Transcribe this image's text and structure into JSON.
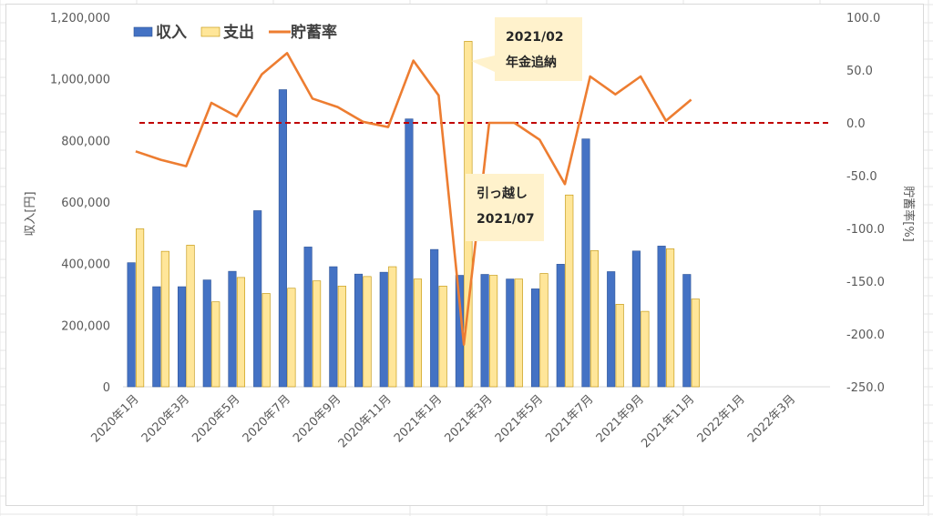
{
  "chart_data": {
    "type": "bar",
    "categories": [
      "2020年1月",
      "2020年2月",
      "2020年3月",
      "2020年4月",
      "2020年5月",
      "2020年6月",
      "2020年7月",
      "2020年8月",
      "2020年9月",
      "2020年10月",
      "2020年11月",
      "2020年12月",
      "2021年1月",
      "2021年2月",
      "2021年3月",
      "2021年4月",
      "2021年5月",
      "2021年6月",
      "2021年7月",
      "2021年8月",
      "2021年9月",
      "2021年10月",
      "2021年11月",
      "2021年12月",
      "2022年1月",
      "2022年2月",
      "2022年3月",
      "2022年4月"
    ],
    "x_tick_labels": [
      "2020年1月",
      "2020年3月",
      "2020年5月",
      "2020年7月",
      "2020年9月",
      "2020年11月",
      "2021年1月",
      "2021年3月",
      "2021年5月",
      "2021年7月",
      "2021年9月",
      "2021年11月",
      "2022年1月",
      "2022年3月"
    ],
    "series": [
      {
        "name": "収入",
        "type": "bar",
        "axis": "left",
        "color": "#4472c4",
        "values": [
          403000,
          325000,
          325000,
          347000,
          375000,
          572000,
          965000,
          454000,
          390000,
          366000,
          372000,
          870000,
          446000,
          362000,
          365000,
          350000,
          318000,
          398000,
          805000,
          374000,
          441000,
          457000,
          365000,
          null,
          null,
          null,
          null,
          null
        ]
      },
      {
        "name": "支出",
        "type": "bar",
        "axis": "left",
        "color": "#ffe699",
        "values": [
          513000,
          440000,
          460000,
          276000,
          355000,
          303000,
          320000,
          344000,
          327000,
          358000,
          390000,
          350000,
          327000,
          1122000,
          362000,
          350000,
          368000,
          623000,
          442000,
          268000,
          245000,
          448000,
          285000,
          null,
          null,
          null,
          null,
          null
        ]
      },
      {
        "name": "貯蓄率",
        "type": "line",
        "axis": "right",
        "color": "#ed7d31",
        "values": [
          -27,
          -35,
          -41,
          19,
          6,
          46,
          66,
          23,
          15,
          1,
          -4,
          59,
          26,
          -210,
          0,
          0,
          -16,
          -58,
          44,
          27,
          44,
          2,
          22,
          null,
          null,
          null,
          null,
          null
        ]
      }
    ],
    "y_left": {
      "label": "収入[円]",
      "min": 0,
      "max": 1200000,
      "step": 200000,
      "tick_labels": [
        "0",
        "200,000",
        "400,000",
        "600,000",
        "800,000",
        "1,000,000",
        "1,200,000"
      ]
    },
    "y_right": {
      "label": "貯蓄率[%]",
      "min": -250,
      "max": 100,
      "step": 50,
      "tick_labels": [
        "-250.0",
        "-200.0",
        "-150.0",
        "-100.0",
        "-50.0",
        "0.0",
        "50.0",
        "100.0"
      ]
    },
    "reference_line": {
      "axis": "right",
      "value": 0,
      "color": "#c00000",
      "style": "dashed"
    },
    "legend": {
      "placement": "top-left",
      "items": [
        "収入",
        "支出",
        "貯蓄率"
      ]
    },
    "annotations": [
      {
        "lines": [
          "2021/02",
          "年金追納"
        ],
        "points_to": "2021年2月"
      },
      {
        "lines": [
          "引っ越し",
          "2021/07"
        ],
        "points_to": "2021年6月"
      }
    ],
    "grid": false,
    "colors": {
      "income": "#4472c4",
      "income_edge": "#2f5597",
      "expense": "#ffe699",
      "expense_edge": "#bf9000",
      "rate": "#ed7d31",
      "callout": "#fff2cc"
    }
  }
}
